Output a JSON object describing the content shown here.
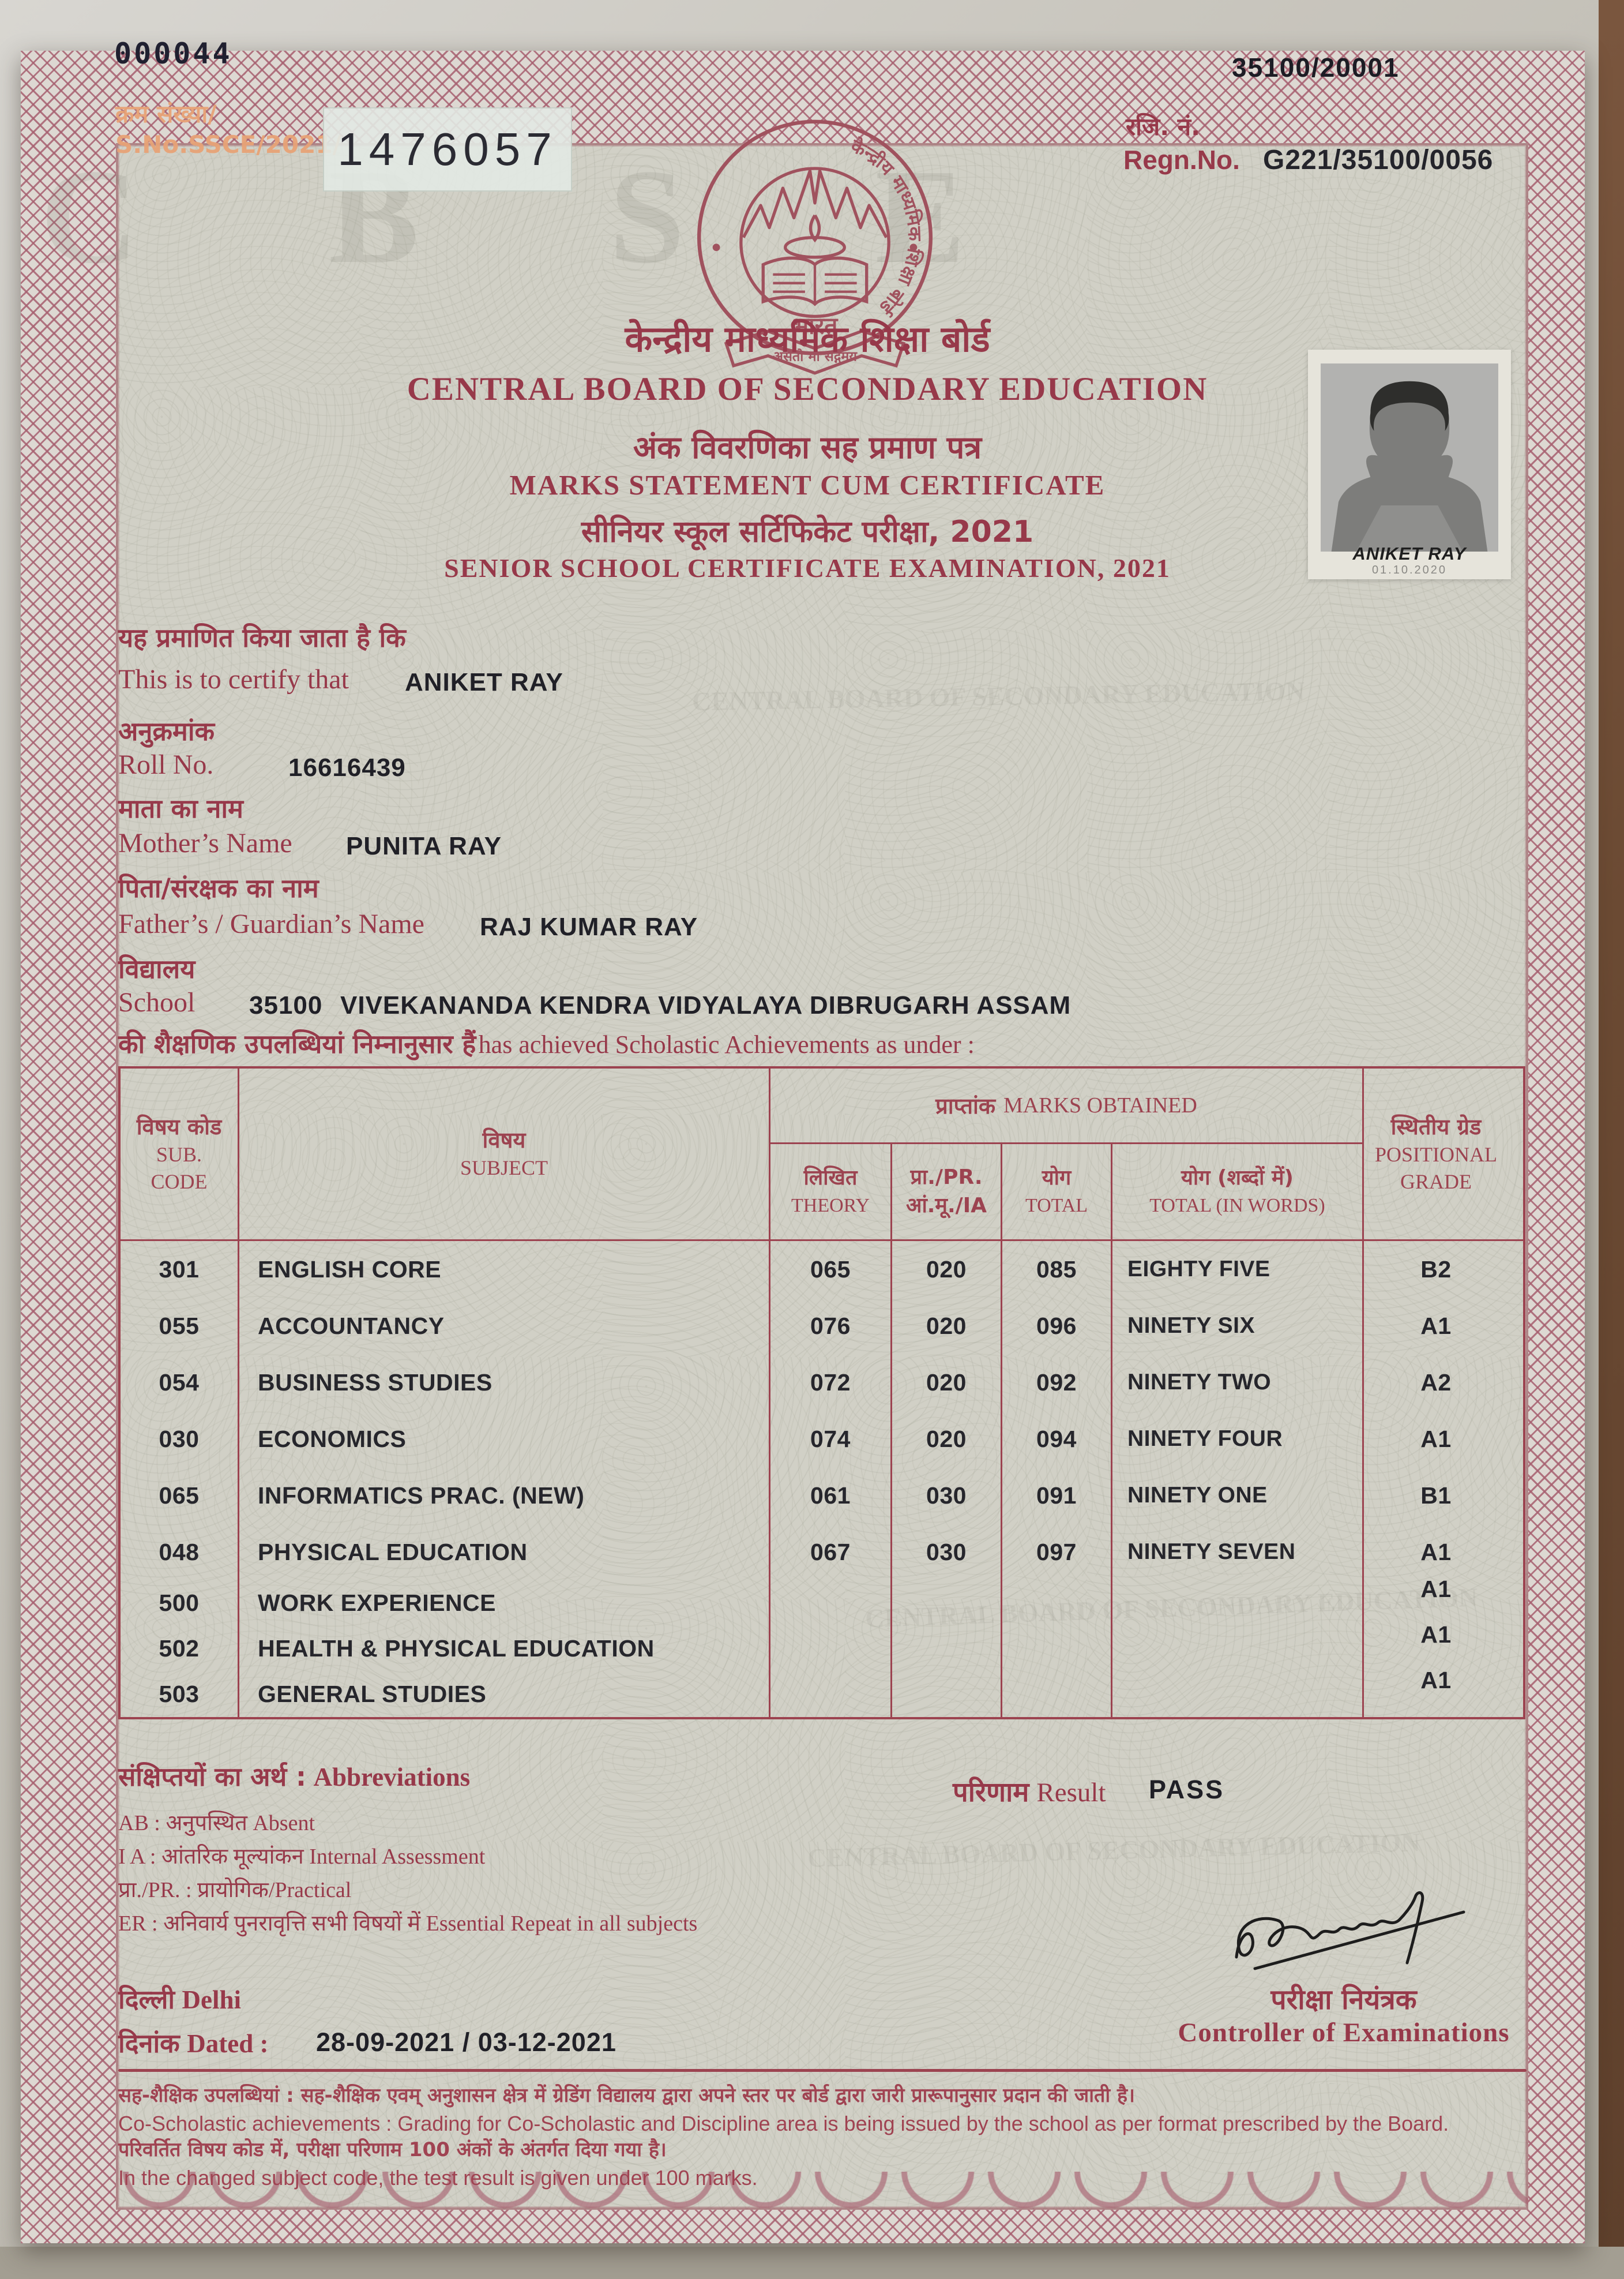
{
  "page": {
    "corner_serial": "000044",
    "corner_code": "35100/20001"
  },
  "serial": {
    "label_hi": "क्रम संख्या/",
    "label_en": "S.No.SSCE/2021/",
    "number": "1476057"
  },
  "regn": {
    "label_hi": "रजि. नं.",
    "label_en": "Regn.No.",
    "value": "G221/35100/0056"
  },
  "logo": {
    "ring_text": "केन्द्रीय माध्यमिक शिक्षा बोर्ड",
    "bharat": "भारत",
    "motto": "असतो मा सद्गमय"
  },
  "watermarks": {
    "big": "CBSE",
    "line": "CENTRAL BOARD OF SECONDARY EDUCATION"
  },
  "titles": {
    "board_hi": "केन्द्रीय माध्यमिक शिक्षा बोर्ड",
    "board_en": "CENTRAL BOARD OF SECONDARY EDUCATION",
    "doc_hi": "अंक विवरणिका सह प्रमाण पत्र",
    "doc_en": "MARKS STATEMENT CUM CERTIFICATE",
    "exam_hi": "सीनियर स्कूल सर्टिफिकेट परीक्षा, 2021",
    "exam_en": "SENIOR SCHOOL CERTIFICATE EXAMINATION, 2021"
  },
  "photo": {
    "caption": "ANIKET RAY",
    "stamp": "01.10.2020"
  },
  "fields": {
    "certify_hi": "यह प्रमाणित किया जाता है कि",
    "certify_en": "This is to certify that",
    "student_name": "ANIKET RAY",
    "roll_hi": "अनुक्रमांक",
    "roll_en": "Roll No.",
    "roll_value": "16616439",
    "mother_hi": "माता का नाम",
    "mother_en": "Mother’s Name",
    "mother_value": "PUNITA RAY",
    "father_hi": "पिता/संरक्षक का नाम",
    "father_en": "Father’s / Guardian’s Name",
    "father_value": "RAJ KUMAR RAY",
    "school_hi": "विद्यालय",
    "school_en": "School",
    "school_code": "35100",
    "school_name": "VIVEKANANDA KENDRA VIDYALAYA DIBRUGARH ASSAM",
    "achievements_hi": "की शैक्षणिक उपलब्धियां निम्नानुसार हैं",
    "achievements_en": "has achieved Scholastic Achievements as under :"
  },
  "table": {
    "marks_obtained_hi": "प्राप्तांक",
    "marks_obtained_en": "MARKS OBTAINED",
    "columns": {
      "code_hi": "विषय कोड",
      "code_en1": "SUB.",
      "code_en2": "CODE",
      "subject_hi": "विषय",
      "subject_en": "SUBJECT",
      "theory_hi": "लिखित",
      "theory_en": "THEORY",
      "pr_hi": "प्रा./PR.",
      "pr_en": "आं.मू./IA",
      "total_hi": "योग",
      "total_en": "TOTAL",
      "words_hi": "योग (शब्दों में)",
      "words_en": "TOTAL (IN WORDS)",
      "grade_hi": "स्थितीय ग्रेड",
      "grade_en1": "POSITIONAL",
      "grade_en2": "GRADE"
    },
    "rows": [
      {
        "code": "301",
        "subject": "ENGLISH CORE",
        "theory": "065",
        "pr": "020",
        "total": "085",
        "words": "EIGHTY FIVE",
        "grade": "B2"
      },
      {
        "code": "055",
        "subject": "ACCOUNTANCY",
        "theory": "076",
        "pr": "020",
        "total": "096",
        "words": "NINETY SIX",
        "grade": "A1"
      },
      {
        "code": "054",
        "subject": "BUSINESS STUDIES",
        "theory": "072",
        "pr": "020",
        "total": "092",
        "words": "NINETY TWO",
        "grade": "A2"
      },
      {
        "code": "030",
        "subject": "ECONOMICS",
        "theory": "074",
        "pr": "020",
        "total": "094",
        "words": "NINETY FOUR",
        "grade": "A1"
      },
      {
        "code": "065",
        "subject": "INFORMATICS PRAC. (NEW)",
        "theory": "061",
        "pr": "030",
        "total": "091",
        "words": "NINETY ONE",
        "grade": "B1"
      },
      {
        "code": "048",
        "subject": "PHYSICAL EDUCATION",
        "theory": "067",
        "pr": "030",
        "total": "097",
        "words": "NINETY SEVEN",
        "grade": "A1"
      },
      {
        "code": "500",
        "subject": "WORK EXPERIENCE",
        "theory": "",
        "pr": "",
        "total": "",
        "words": "",
        "grade": "A1"
      },
      {
        "code": "502",
        "subject": "HEALTH & PHYSICAL EDUCATION",
        "theory": "",
        "pr": "",
        "total": "",
        "words": "",
        "grade": "A1"
      },
      {
        "code": "503",
        "subject": "GENERAL STUDIES",
        "theory": "",
        "pr": "",
        "total": "",
        "words": "",
        "grade": "A1"
      }
    ]
  },
  "abbreviations": {
    "title_hi": "संक्षिप्तयों का अर्थ :",
    "title_en": "Abbreviations",
    "items": [
      "AB : अनुपस्थित Absent",
      "I A : आंतरिक मूल्यांकन Internal Assessment",
      "प्रा./PR. : प्रायोगिक/Practical",
      "ER : अनिवार्य पुनरावृत्ति सभी विषयों में Essential Repeat in all subjects"
    ]
  },
  "result": {
    "label_hi": "परिणाम",
    "label_en": "Result",
    "value": "PASS"
  },
  "signoff": {
    "title_hi": "परीक्षा नियंत्रक",
    "title_en": "Controller of Examinations"
  },
  "place_date": {
    "place_hi": "दिल्ली",
    "place_en": "Delhi",
    "date_hi": "दिनांक",
    "date_en": "Dated :",
    "date_value": "28-09-2021 / 03-12-2021"
  },
  "footnotes": [
    {
      "lang": "hi",
      "text": "सह-शैक्षिक उपलब्धियां : सह-शैक्षिक एवम् अनुशासन क्षेत्र में ग्रेडिंग विद्यालय द्वारा अपने स्तर पर बोर्ड द्वारा जारी प्रारूपानुसार प्रदान की जाती है।"
    },
    {
      "lang": "en",
      "text": "Co-Scholastic achievements : Grading for Co-Scholastic and Discipline area is being issued by the school as per format prescribed by the Board."
    },
    {
      "lang": "hi",
      "text": "परिवर्तित विषय कोड में, परीक्षा परिणाम 100 अंकों के अंतर्गत दिया गया है।"
    },
    {
      "lang": "en",
      "text": "In the changed subject code, the test result is given under 100 marks."
    }
  ],
  "colors": {
    "maroon": "#97394a",
    "black_ink": "#24242b",
    "orange_faded": "#e7a276",
    "paper": "#d1d0c6",
    "border_pink": "#a76070"
  }
}
